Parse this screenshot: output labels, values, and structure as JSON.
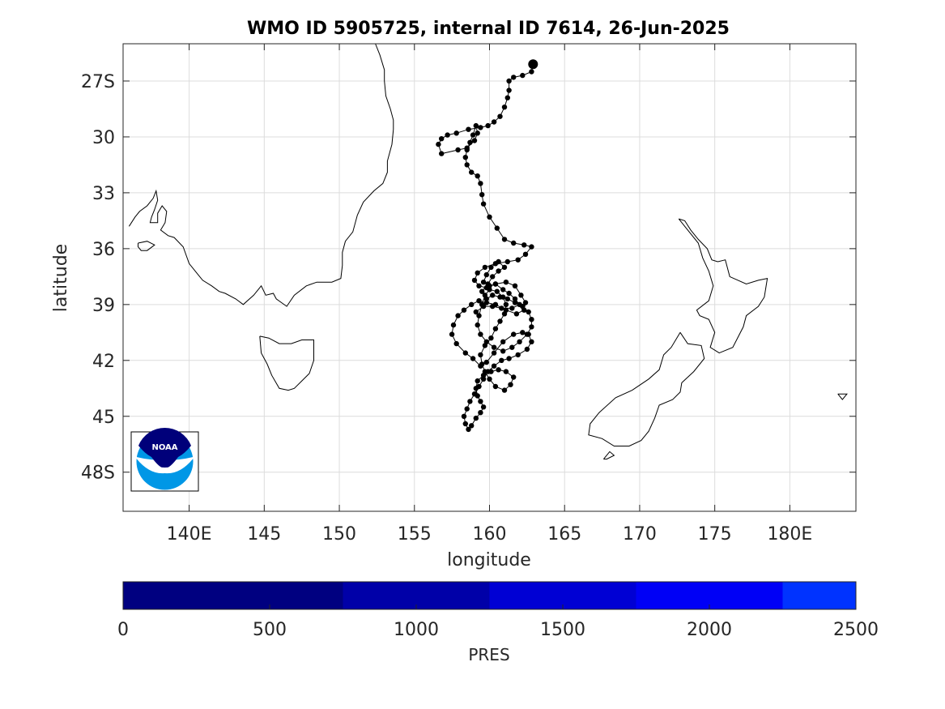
{
  "title": "WMO ID 5905725, internal ID 7614, 26-Jun-2025",
  "map": {
    "xlabel": "longitude",
    "ylabel": "latitude",
    "lon_range": [
      135.6,
      184.4
    ],
    "lat_range": [
      -25,
      -50.1
    ],
    "x_ticks": [
      {
        "value": 140,
        "label": "140E"
      },
      {
        "value": 145,
        "label": "145"
      },
      {
        "value": 150,
        "label": "150"
      },
      {
        "value": 155,
        "label": "155"
      },
      {
        "value": 160,
        "label": "160"
      },
      {
        "value": 165,
        "label": "165"
      },
      {
        "value": 170,
        "label": "170"
      },
      {
        "value": 175,
        "label": "175"
      },
      {
        "value": 180,
        "label": "180E"
      }
    ],
    "y_ticks": [
      {
        "value": -27,
        "label": "27S"
      },
      {
        "value": -30,
        "label": "30"
      },
      {
        "value": -33,
        "label": "33"
      },
      {
        "value": -36,
        "label": "36"
      },
      {
        "value": -39,
        "label": "39"
      },
      {
        "value": -42,
        "label": "42"
      },
      {
        "value": -45,
        "label": "45"
      },
      {
        "value": -48,
        "label": "48S"
      }
    ],
    "grid": true,
    "colors": {
      "track": "#000000",
      "coast": "#000000",
      "grid": "#dcdcdc"
    }
  },
  "logo": {
    "text": "NOAA",
    "colors": {
      "dark": "#00007a",
      "light": "#0097e6"
    }
  },
  "chart_data": {
    "type": "scatter",
    "x_name": "longitude",
    "y_name": "latitude",
    "points": [
      [
        162.9,
        -26.1
      ],
      [
        162.8,
        -26.5
      ],
      [
        162.2,
        -26.7
      ],
      [
        161.6,
        -26.8
      ],
      [
        161.3,
        -27.0
      ],
      [
        161.3,
        -27.5
      ],
      [
        161.2,
        -27.9
      ],
      [
        161.0,
        -28.4
      ],
      [
        160.7,
        -28.9
      ],
      [
        160.3,
        -29.2
      ],
      [
        159.9,
        -29.4
      ],
      [
        159.4,
        -29.5
      ],
      [
        158.6,
        -29.6
      ],
      [
        157.8,
        -29.8
      ],
      [
        157.2,
        -29.9
      ],
      [
        156.8,
        -30.1
      ],
      [
        156.6,
        -30.4
      ],
      [
        156.8,
        -30.9
      ],
      [
        157.9,
        -30.7
      ],
      [
        158.5,
        -30.6
      ],
      [
        159.0,
        -30.2
      ],
      [
        159.2,
        -29.8
      ],
      [
        159.1,
        -29.4
      ],
      [
        158.9,
        -29.9
      ],
      [
        158.7,
        -30.3
      ],
      [
        158.5,
        -30.7
      ],
      [
        158.4,
        -31.1
      ],
      [
        158.5,
        -31.5
      ],
      [
        158.8,
        -31.9
      ],
      [
        159.2,
        -32.1
      ],
      [
        159.4,
        -32.5
      ],
      [
        159.5,
        -33.1
      ],
      [
        159.6,
        -33.6
      ],
      [
        160.0,
        -34.3
      ],
      [
        160.5,
        -34.9
      ],
      [
        161.0,
        -35.5
      ],
      [
        161.6,
        -35.7
      ],
      [
        162.3,
        -35.8
      ],
      [
        162.8,
        -35.9
      ],
      [
        162.4,
        -36.3
      ],
      [
        161.9,
        -36.6
      ],
      [
        161.2,
        -36.7
      ],
      [
        160.4,
        -36.8
      ],
      [
        159.7,
        -37.0
      ],
      [
        159.2,
        -37.3
      ],
      [
        159.0,
        -37.7
      ],
      [
        159.3,
        -38.0
      ],
      [
        159.8,
        -38.1
      ],
      [
        160.4,
        -37.9
      ],
      [
        161.1,
        -37.8
      ],
      [
        161.7,
        -38.0
      ],
      [
        162.1,
        -38.5
      ],
      [
        162.4,
        -38.9
      ],
      [
        162.3,
        -39.3
      ],
      [
        161.8,
        -39.5
      ],
      [
        161.1,
        -39.3
      ],
      [
        160.4,
        -39.0
      ],
      [
        159.8,
        -38.9
      ],
      [
        159.3,
        -38.8
      ],
      [
        158.8,
        -39.0
      ],
      [
        158.3,
        -39.3
      ],
      [
        157.9,
        -39.6
      ],
      [
        157.6,
        -40.1
      ],
      [
        157.5,
        -40.6
      ],
      [
        157.8,
        -41.1
      ],
      [
        158.4,
        -41.6
      ],
      [
        158.9,
        -41.9
      ],
      [
        159.4,
        -42.3
      ],
      [
        159.8,
        -42.1
      ],
      [
        160.3,
        -41.6
      ],
      [
        160.9,
        -41.0
      ],
      [
        161.6,
        -40.6
      ],
      [
        162.2,
        -40.5
      ],
      [
        162.6,
        -40.6
      ],
      [
        162.8,
        -41.0
      ],
      [
        162.5,
        -41.4
      ],
      [
        161.9,
        -41.7
      ],
      [
        161.3,
        -41.9
      ],
      [
        160.8,
        -42.0
      ],
      [
        160.3,
        -42.3
      ],
      [
        159.9,
        -42.6
      ],
      [
        159.6,
        -43.0
      ],
      [
        159.3,
        -43.4
      ],
      [
        159.0,
        -43.8
      ],
      [
        158.7,
        -44.2
      ],
      [
        158.5,
        -44.6
      ],
      [
        158.3,
        -45.0
      ],
      [
        158.4,
        -45.4
      ],
      [
        158.6,
        -45.7
      ],
      [
        158.8,
        -45.5
      ],
      [
        159.1,
        -45.1
      ],
      [
        159.4,
        -44.8
      ],
      [
        159.6,
        -44.5
      ],
      [
        159.4,
        -44.2
      ],
      [
        159.2,
        -43.9
      ],
      [
        159.1,
        -43.5
      ],
      [
        159.2,
        -43.1
      ],
      [
        159.6,
        -42.8
      ],
      [
        160.1,
        -42.6
      ],
      [
        160.6,
        -42.5
      ],
      [
        161.1,
        -42.6
      ],
      [
        161.6,
        -42.9
      ],
      [
        161.4,
        -43.3
      ],
      [
        161.0,
        -43.6
      ],
      [
        160.4,
        -43.4
      ],
      [
        160.0,
        -43.0
      ],
      [
        159.7,
        -42.6
      ],
      [
        159.5,
        -42.2
      ],
      [
        159.4,
        -41.7
      ],
      [
        159.7,
        -41.2
      ],
      [
        160.1,
        -40.8
      ],
      [
        160.4,
        -40.3
      ],
      [
        160.7,
        -39.9
      ],
      [
        161.0,
        -39.5
      ],
      [
        161.1,
        -39.0
      ],
      [
        160.9,
        -38.6
      ],
      [
        160.5,
        -38.3
      ],
      [
        160.0,
        -38.2
      ],
      [
        159.7,
        -38.5
      ],
      [
        159.5,
        -39.0
      ],
      [
        159.3,
        -39.6
      ],
      [
        159.2,
        -40.1
      ],
      [
        159.4,
        -40.6
      ],
      [
        159.8,
        -41.0
      ],
      [
        160.3,
        -41.3
      ],
      [
        160.9,
        -41.5
      ],
      [
        161.5,
        -41.3
      ],
      [
        162.0,
        -41.0
      ],
      [
        162.5,
        -40.6
      ],
      [
        162.8,
        -40.2
      ],
      [
        162.8,
        -39.8
      ],
      [
        162.6,
        -39.4
      ],
      [
        162.2,
        -39.1
      ],
      [
        161.7,
        -38.9
      ],
      [
        161.2,
        -38.7
      ],
      [
        160.7,
        -38.6
      ],
      [
        160.2,
        -38.5
      ],
      [
        159.8,
        -38.7
      ],
      [
        159.5,
        -38.3
      ],
      [
        159.9,
        -37.9
      ],
      [
        160.2,
        -37.5
      ],
      [
        160.6,
        -37.2
      ],
      [
        161.0,
        -37.0
      ],
      [
        160.6,
        -36.7
      ],
      [
        160.1,
        -37.0
      ],
      [
        159.8,
        -37.4
      ],
      [
        159.6,
        -37.8
      ],
      [
        160.0,
        -38.0
      ],
      [
        160.4,
        -37.9
      ],
      [
        160.9,
        -38.2
      ],
      [
        161.3,
        -38.4
      ],
      [
        161.7,
        -38.7
      ],
      [
        162.0,
        -39.0
      ],
      [
        161.5,
        -39.2
      ],
      [
        160.8,
        -39.2
      ],
      [
        160.2,
        -39.1
      ],
      [
        159.6,
        -39.1
      ],
      [
        159.1,
        -39.4
      ]
    ],
    "coastline": {
      "australia_east": [
        [
          136.0,
          -34.8
        ],
        [
          136.4,
          -34.3
        ],
        [
          136.7,
          -34.0
        ],
        [
          137.2,
          -33.7
        ],
        [
          137.6,
          -33.3
        ],
        [
          137.8,
          -32.9
        ],
        [
          137.9,
          -33.4
        ],
        [
          137.7,
          -33.9
        ],
        [
          137.5,
          -34.3
        ],
        [
          137.4,
          -34.6
        ],
        [
          137.9,
          -34.6
        ],
        [
          137.9,
          -34.1
        ],
        [
          138.2,
          -33.7
        ],
        [
          138.5,
          -34.0
        ],
        [
          138.4,
          -34.6
        ],
        [
          138.1,
          -35.0
        ],
        [
          138.6,
          -35.3
        ],
        [
          139.0,
          -35.4
        ],
        [
          139.6,
          -35.9
        ],
        [
          140.0,
          -36.8
        ],
        [
          140.6,
          -37.4
        ],
        [
          140.9,
          -37.7
        ],
        [
          141.5,
          -38.0
        ],
        [
          142.0,
          -38.3
        ],
        [
          142.4,
          -38.4
        ],
        [
          143.1,
          -38.7
        ],
        [
          143.6,
          -39.0
        ],
        [
          144.3,
          -38.5
        ],
        [
          144.8,
          -38.0
        ],
        [
          145.1,
          -38.5
        ],
        [
          145.6,
          -38.4
        ],
        [
          145.8,
          -38.7
        ],
        [
          146.5,
          -39.1
        ],
        [
          147.0,
          -38.5
        ],
        [
          147.8,
          -38.0
        ],
        [
          148.5,
          -37.8
        ],
        [
          149.5,
          -37.8
        ],
        [
          150.1,
          -37.6
        ],
        [
          150.2,
          -36.9
        ],
        [
          150.2,
          -36.2
        ],
        [
          150.4,
          -35.6
        ],
        [
          150.9,
          -35.1
        ],
        [
          151.2,
          -34.2
        ],
        [
          151.6,
          -33.5
        ],
        [
          152.3,
          -32.9
        ],
        [
          152.9,
          -32.5
        ],
        [
          153.2,
          -31.9
        ],
        [
          153.2,
          -31.3
        ],
        [
          153.5,
          -30.4
        ],
        [
          153.6,
          -29.6
        ],
        [
          153.6,
          -29.1
        ],
        [
          153.4,
          -28.5
        ],
        [
          153.1,
          -27.8
        ],
        [
          153.0,
          -27.0
        ],
        [
          153.0,
          -26.4
        ],
        [
          152.7,
          -25.6
        ],
        [
          152.4,
          -25.0
        ]
      ],
      "kangaroo_island": [
        [
          136.6,
          -35.7
        ],
        [
          137.2,
          -35.6
        ],
        [
          137.7,
          -35.8
        ],
        [
          137.2,
          -36.1
        ],
        [
          136.8,
          -36.1
        ],
        [
          136.6,
          -35.9
        ],
        [
          136.6,
          -35.7
        ]
      ],
      "tasmania": [
        [
          144.7,
          -40.7
        ],
        [
          145.3,
          -40.8
        ],
        [
          146.0,
          -41.1
        ],
        [
          146.8,
          -41.1
        ],
        [
          147.5,
          -40.9
        ],
        [
          148.3,
          -40.9
        ],
        [
          148.3,
          -42.0
        ],
        [
          148.0,
          -42.7
        ],
        [
          147.5,
          -43.1
        ],
        [
          147.0,
          -43.5
        ],
        [
          146.6,
          -43.6
        ],
        [
          146.0,
          -43.5
        ],
        [
          145.5,
          -42.8
        ],
        [
          145.2,
          -42.2
        ],
        [
          144.8,
          -41.6
        ],
        [
          144.7,
          -40.7
        ]
      ],
      "nz_north": [
        [
          172.6,
          -34.4
        ],
        [
          173.0,
          -34.5
        ],
        [
          173.4,
          -35.0
        ],
        [
          173.9,
          -35.5
        ],
        [
          174.5,
          -36.0
        ],
        [
          174.8,
          -36.6
        ],
        [
          175.2,
          -36.7
        ],
        [
          175.7,
          -36.6
        ],
        [
          176.0,
          -37.5
        ],
        [
          177.1,
          -37.9
        ],
        [
          177.9,
          -37.7
        ],
        [
          178.5,
          -37.6
        ],
        [
          178.3,
          -38.6
        ],
        [
          177.9,
          -39.1
        ],
        [
          177.1,
          -39.6
        ],
        [
          176.9,
          -40.2
        ],
        [
          176.2,
          -41.3
        ],
        [
          175.3,
          -41.6
        ],
        [
          174.7,
          -41.3
        ],
        [
          175.0,
          -40.5
        ],
        [
          174.6,
          -39.8
        ],
        [
          174.0,
          -39.6
        ],
        [
          173.8,
          -39.3
        ],
        [
          174.6,
          -38.8
        ],
        [
          174.9,
          -38.0
        ],
        [
          174.6,
          -37.2
        ],
        [
          174.2,
          -36.5
        ],
        [
          173.9,
          -35.7
        ],
        [
          173.1,
          -34.9
        ],
        [
          172.6,
          -34.4
        ]
      ],
      "nz_south": [
        [
          172.7,
          -40.5
        ],
        [
          173.2,
          -41.1
        ],
        [
          174.1,
          -41.2
        ],
        [
          174.3,
          -41.9
        ],
        [
          173.6,
          -42.6
        ],
        [
          172.8,
          -43.2
        ],
        [
          172.7,
          -43.7
        ],
        [
          172.2,
          -44.1
        ],
        [
          171.3,
          -44.4
        ],
        [
          171.0,
          -45.1
        ],
        [
          170.6,
          -45.8
        ],
        [
          170.1,
          -46.3
        ],
        [
          169.3,
          -46.6
        ],
        [
          168.3,
          -46.6
        ],
        [
          167.5,
          -46.2
        ],
        [
          166.6,
          -46.0
        ],
        [
          166.7,
          -45.4
        ],
        [
          167.3,
          -44.8
        ],
        [
          168.4,
          -44.0
        ],
        [
          169.5,
          -43.6
        ],
        [
          170.6,
          -43.0
        ],
        [
          171.3,
          -42.5
        ],
        [
          171.6,
          -41.7
        ],
        [
          172.1,
          -41.3
        ],
        [
          172.7,
          -40.5
        ]
      ],
      "stewart_island": [
        [
          167.6,
          -47.3
        ],
        [
          168.0,
          -46.9
        ],
        [
          168.3,
          -47.1
        ],
        [
          167.8,
          -47.3
        ],
        [
          167.6,
          -47.3
        ]
      ],
      "chatham_islet": [
        [
          183.2,
          -43.8
        ],
        [
          183.8,
          -43.8
        ],
        [
          183.5,
          -44.1
        ],
        [
          183.2,
          -43.8
        ]
      ]
    }
  },
  "colorbar": {
    "label": "PRES",
    "range": [
      0,
      2500
    ],
    "ticks": [
      0,
      500,
      1000,
      1500,
      2000,
      2500
    ],
    "segments": [
      {
        "from": 0,
        "to": 750,
        "color": "#000080"
      },
      {
        "from": 750,
        "to": 1250,
        "color": "#0000a8"
      },
      {
        "from": 1250,
        "to": 1750,
        "color": "#0000d4"
      },
      {
        "from": 1750,
        "to": 2250,
        "color": "#0000f6"
      },
      {
        "from": 2250,
        "to": 2500,
        "color": "#0033ff"
      }
    ]
  }
}
